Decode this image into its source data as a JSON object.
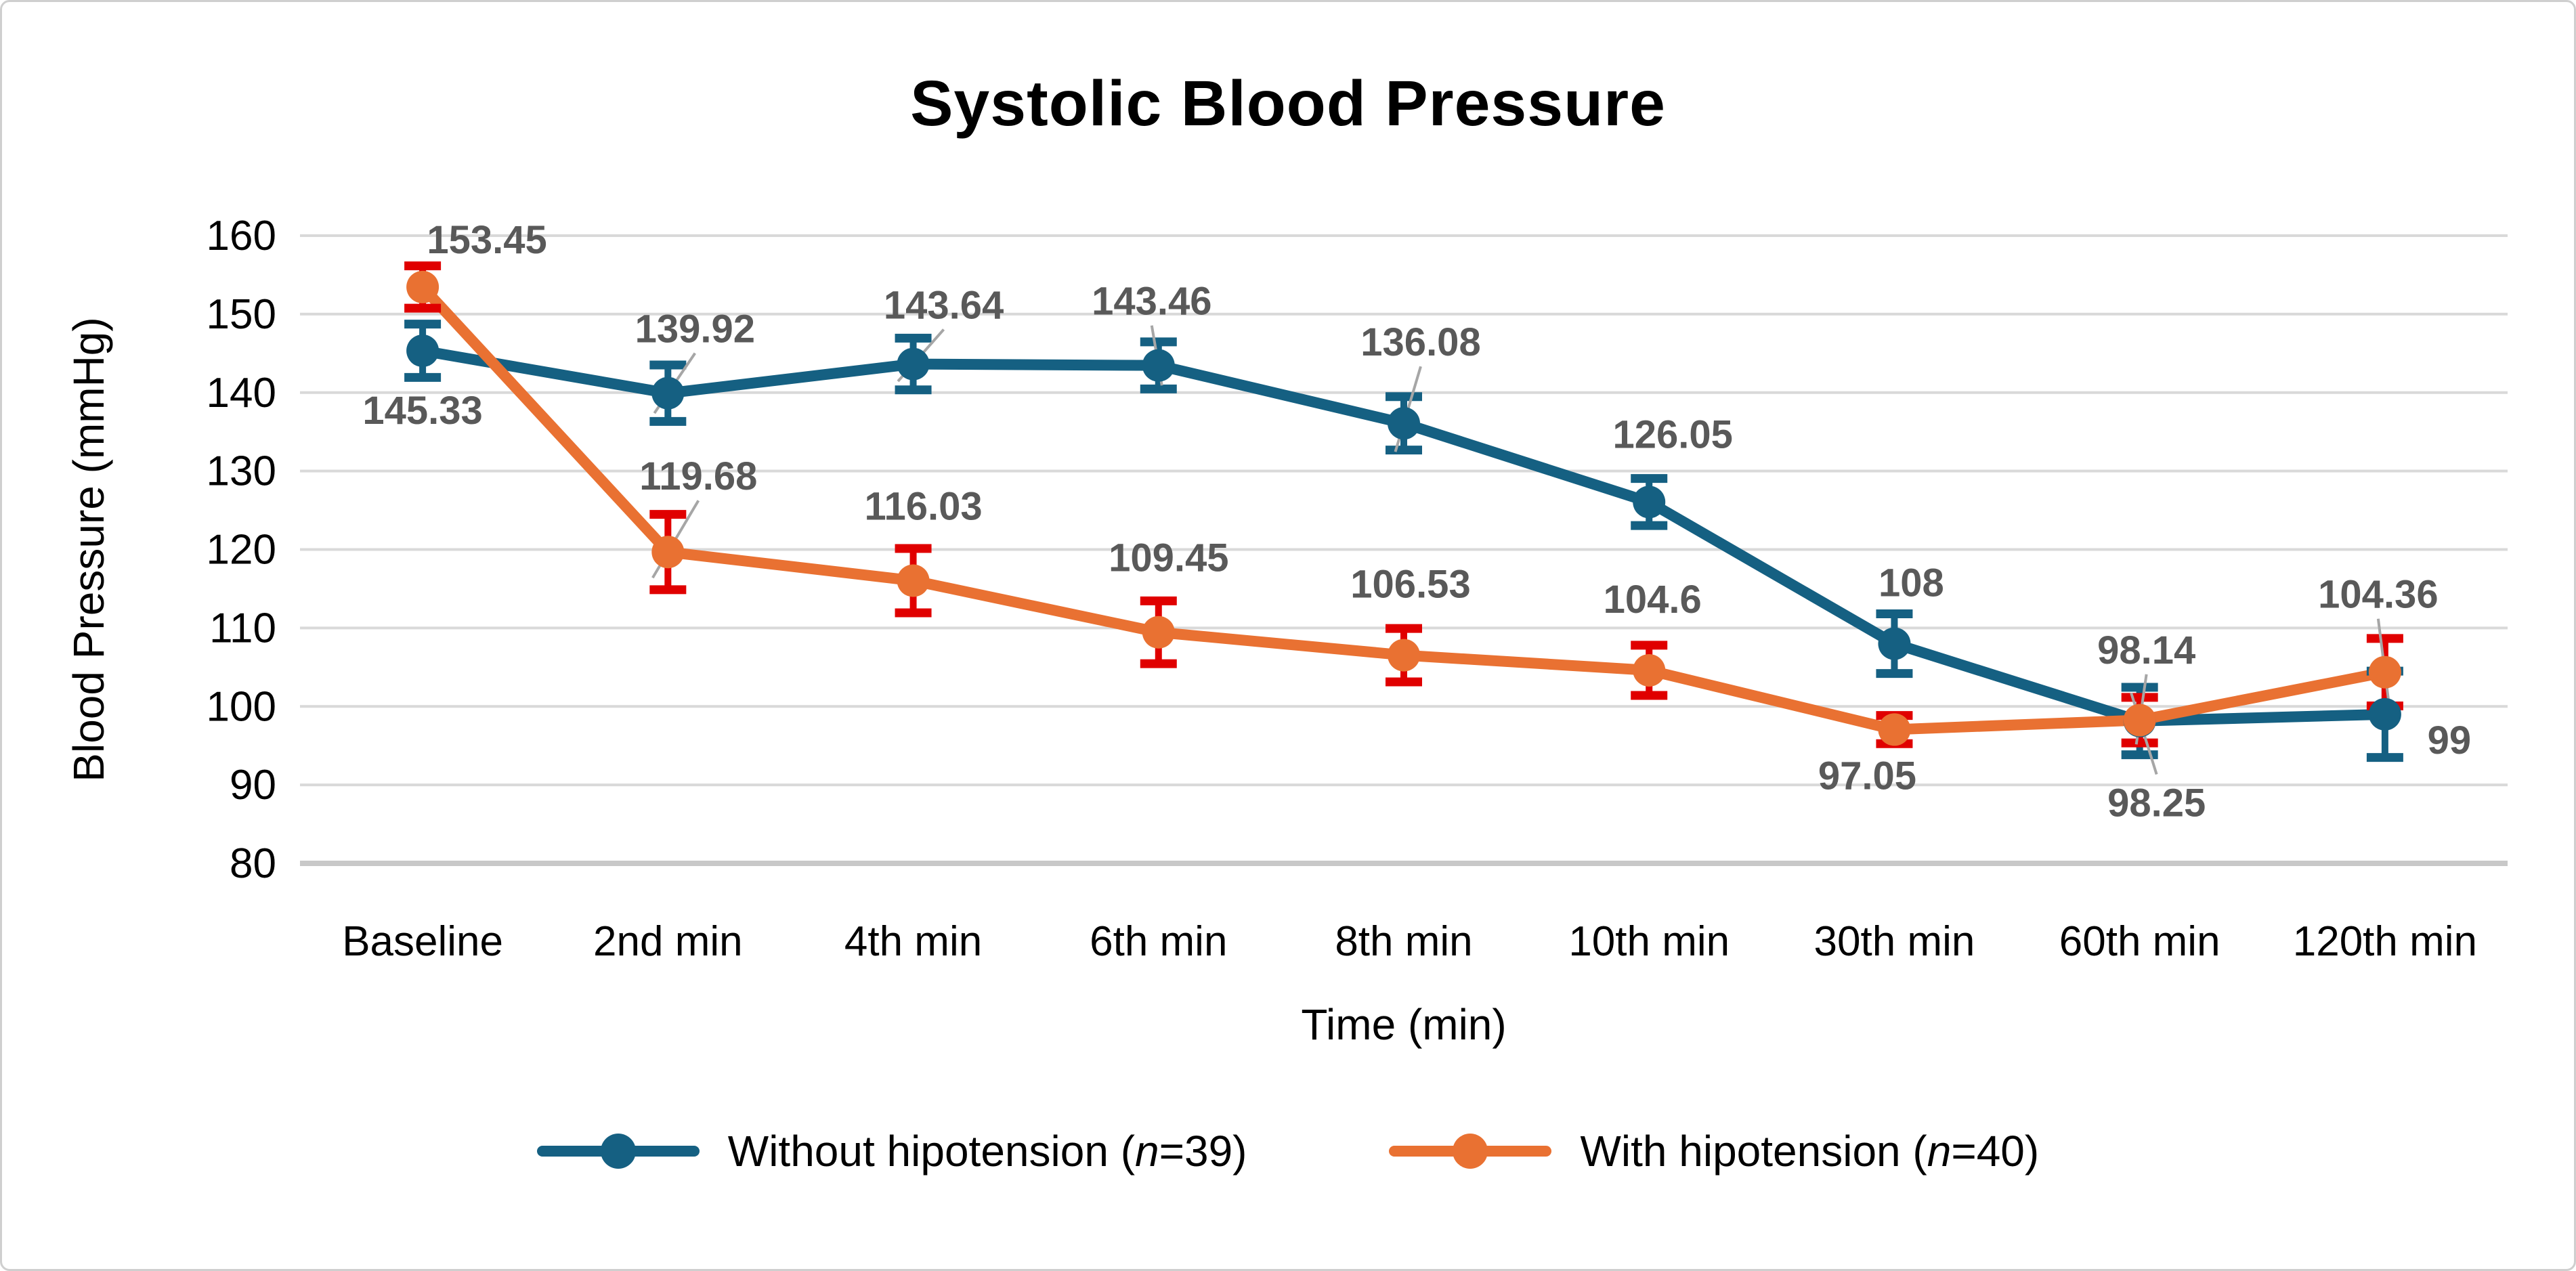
{
  "chart_data": {
    "type": "line",
    "title": "Systolic Blood Pressure",
    "xlabel": "Time (min)",
    "ylabel": "Blood Pressure (mmHg)",
    "ylim": [
      80,
      160
    ],
    "ytick_step": 10,
    "grid": true,
    "legend_position": "bottom",
    "categories": [
      "Baseline",
      "2nd min",
      "4th min",
      "6th min",
      "8th min",
      "10th min",
      "30th min",
      "60th min",
      "120th min"
    ],
    "series": [
      {
        "name": "Without hipotension (n=39)",
        "legend_prefix": "Without hipotension (",
        "legend_n": "n",
        "legend_suffix": "=39)",
        "color": "#156082",
        "error_color": "#156082",
        "values": [
          145.33,
          139.92,
          143.64,
          143.46,
          136.08,
          126.05,
          108,
          98.14,
          99
        ],
        "errors": [
          3.4,
          3.6,
          3.3,
          3.0,
          3.4,
          3.0,
          3.8,
          4.3,
          5.5
        ],
        "labels": [
          "145.33",
          "139.92",
          "143.64",
          "143.46",
          "136.08",
          "126.05",
          "108",
          "98.14",
          "99"
        ],
        "label_offsets": [
          [
            0,
            88
          ],
          [
            40,
            -95
          ],
          [
            45,
            -87
          ],
          [
            -10,
            -95
          ],
          [
            25,
            -120
          ],
          [
            35,
            -100
          ],
          [
            25,
            -90
          ],
          [
            10,
            -105
          ],
          [
            95,
            38
          ]
        ],
        "label_leaders": [
          false,
          true,
          true,
          true,
          true,
          false,
          false,
          true,
          false
        ]
      },
      {
        "name": "With hipotension (n=40)",
        "legend_prefix": "With hipotension (",
        "legend_n": "n",
        "legend_suffix": "=40)",
        "color": "#E97132",
        "error_color": "#E00000",
        "values": [
          153.45,
          119.68,
          116.03,
          109.45,
          106.53,
          104.6,
          97.05,
          98.25,
          104.36
        ],
        "errors": [
          2.7,
          4.8,
          4.1,
          4.0,
          3.4,
          3.2,
          1.8,
          2.9,
          4.3
        ],
        "labels": [
          "153.45",
          "119.68",
          "116.03",
          "109.45",
          "106.53",
          "104.6",
          "97.05",
          "98.25",
          "104.36"
        ],
        "label_offsets": [
          [
            95,
            -70
          ],
          [
            45,
            -112
          ],
          [
            15,
            -110
          ],
          [
            15,
            -110
          ],
          [
            10,
            -105
          ],
          [
            5,
            -105
          ],
          [
            -40,
            68
          ],
          [
            25,
            122
          ],
          [
            -10,
            -115
          ]
        ],
        "label_leaders": [
          false,
          true,
          false,
          false,
          false,
          false,
          false,
          true,
          true
        ]
      }
    ],
    "colors": {
      "gridline": "#D9D9D9",
      "axis_line": "#C8C8C8",
      "data_label": "#595959",
      "leader_line": "#A6A6A6",
      "title": "#000000"
    }
  }
}
